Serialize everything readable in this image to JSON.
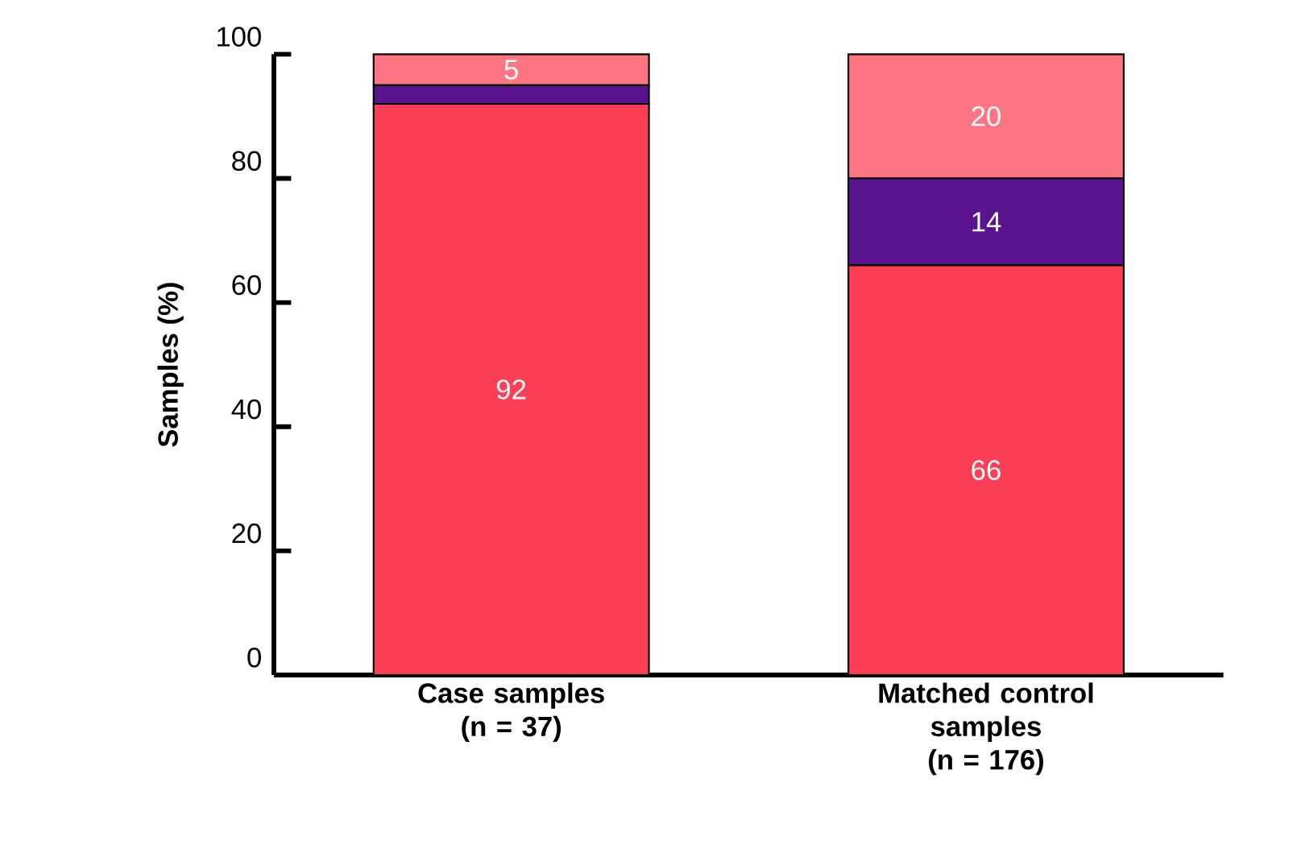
{
  "chart_data": {
    "type": "bar",
    "stacked": true,
    "ylabel": "Samples (%)",
    "categories": [
      "Case samples (n = 37)",
      "Matched control samples (n = 176)"
    ],
    "series": [
      {
        "color": "#fc3f55",
        "values": [
          92,
          66
        ],
        "value_labels": [
          "92",
          "66"
        ]
      },
      {
        "color": "#5b1490",
        "values": [
          3,
          14
        ],
        "value_labels": [
          null,
          "14"
        ]
      },
      {
        "color": "#fd7583",
        "values": [
          5,
          20
        ],
        "value_labels": [
          "5",
          "20"
        ]
      }
    ],
    "ylim": [
      0,
      100
    ],
    "yticks": [
      0,
      20,
      40,
      60,
      80,
      100
    ],
    "grid": false
  }
}
